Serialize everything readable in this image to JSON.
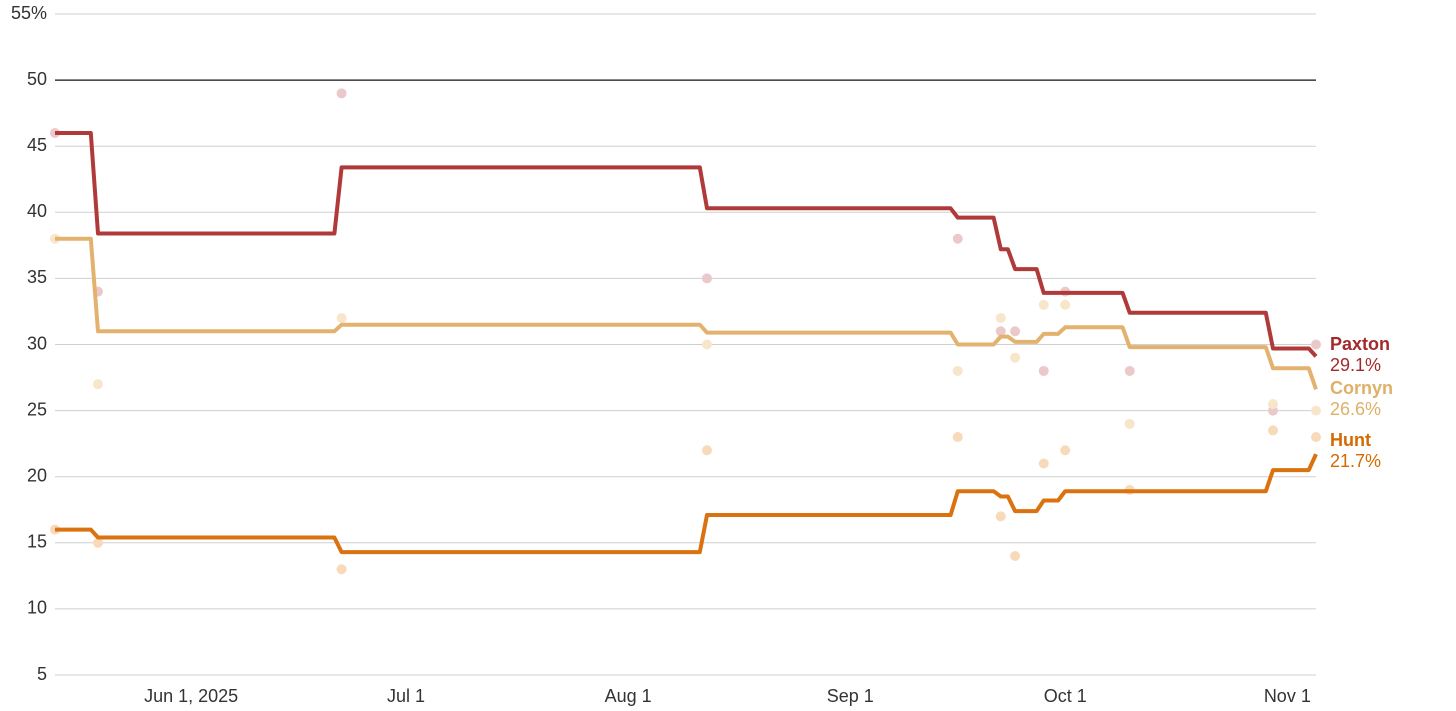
{
  "chart_data": {
    "type": "line",
    "step": true,
    "xlim": [
      "2025-05-13",
      "2025-11-05"
    ],
    "xticks": [
      {
        "value": "2025-06-01",
        "label": "Jun 1, 2025"
      },
      {
        "value": "2025-07-01",
        "label": "Jul 1"
      },
      {
        "value": "2025-08-01",
        "label": "Aug 1"
      },
      {
        "value": "2025-09-01",
        "label": "Sep 1"
      },
      {
        "value": "2025-10-01",
        "label": "Oct 1"
      },
      {
        "value": "2025-11-01",
        "label": "Nov 1"
      }
    ],
    "ylim": [
      5,
      55
    ],
    "yticks": [
      5,
      10,
      15,
      20,
      25,
      30,
      35,
      40,
      45,
      50,
      {
        "value": 55,
        "label": "55%"
      }
    ],
    "grid": true,
    "majority_line": 50,
    "series": [
      {
        "name": "Paxton",
        "color": "#b03a3a",
        "label_color": "#a32a2a",
        "poll_color": "#ebc9cb",
        "x": [
          "2025-05-13",
          "2025-05-18",
          "2025-05-19",
          "2025-06-21",
          "2025-06-22",
          "2025-08-11",
          "2025-08-12",
          "2025-09-15",
          "2025-09-16",
          "2025-09-21",
          "2025-09-22",
          "2025-09-23",
          "2025-09-24",
          "2025-09-27",
          "2025-09-28",
          "2025-10-09",
          "2025-10-10",
          "2025-10-29",
          "2025-10-30",
          "2025-11-04",
          "2025-11-05"
        ],
        "values": [
          46.0,
          46.0,
          38.4,
          38.4,
          43.4,
          43.4,
          40.3,
          40.3,
          39.6,
          39.6,
          37.2,
          37.2,
          35.7,
          35.7,
          33.9,
          33.9,
          32.4,
          32.4,
          29.7,
          29.7,
          29.1
        ],
        "value_labels": [
          null,
          null,
          null,
          null,
          null,
          null,
          null,
          null,
          null,
          null,
          null,
          null,
          null,
          null,
          null,
          null,
          null,
          null,
          null,
          null,
          "29.1%"
        ],
        "polls": {
          "x": [
            "2025-05-13",
            "2025-05-19",
            "2025-06-22",
            "2025-08-12",
            "2025-09-16",
            "2025-09-22",
            "2025-09-24",
            "2025-09-28",
            "2025-10-01",
            "2025-10-10",
            "2025-10-30",
            "2025-11-05"
          ],
          "values": [
            46,
            34,
            49,
            35,
            38,
            31,
            31,
            28,
            34,
            28,
            25,
            30
          ]
        }
      },
      {
        "name": "Cornyn",
        "color": "#e3b26f",
        "label_color": "#deb068",
        "poll_color": "#f8e6cb",
        "x": [
          "2025-05-13",
          "2025-05-18",
          "2025-05-19",
          "2025-06-21",
          "2025-06-22",
          "2025-08-11",
          "2025-08-12",
          "2025-09-15",
          "2025-09-16",
          "2025-09-21",
          "2025-09-22",
          "2025-09-23",
          "2025-09-24",
          "2025-09-27",
          "2025-09-28",
          "2025-09-30",
          "2025-10-01",
          "2025-10-09",
          "2025-10-10",
          "2025-10-29",
          "2025-10-30",
          "2025-11-04",
          "2025-11-05"
        ],
        "values": [
          38.0,
          38.0,
          31.0,
          31.0,
          31.5,
          31.5,
          30.9,
          30.9,
          30.0,
          30.0,
          30.6,
          30.6,
          30.2,
          30.2,
          30.8,
          30.8,
          31.3,
          31.3,
          29.8,
          29.8,
          28.2,
          28.2,
          26.6
        ],
        "value_labels": [
          null,
          null,
          null,
          null,
          null,
          null,
          null,
          null,
          null,
          null,
          null,
          null,
          null,
          null,
          null,
          null,
          null,
          null,
          null,
          null,
          null,
          null,
          "26.6%"
        ],
        "polls": {
          "x": [
            "2025-05-13",
            "2025-05-19",
            "2025-06-22",
            "2025-08-12",
            "2025-09-16",
            "2025-09-22",
            "2025-09-24",
            "2025-09-28",
            "2025-10-01",
            "2025-10-10",
            "2025-10-30",
            "2025-11-05"
          ],
          "values": [
            38,
            27,
            32,
            30,
            28,
            32,
            29,
            33,
            33,
            24,
            25.5,
            25
          ]
        }
      },
      {
        "name": "Hunt",
        "color": "#d9720f",
        "label_color": "#d46a00",
        "poll_color": "#f8dabb",
        "x": [
          "2025-05-13",
          "2025-05-18",
          "2025-05-19",
          "2025-06-21",
          "2025-06-22",
          "2025-08-11",
          "2025-08-12",
          "2025-09-15",
          "2025-09-16",
          "2025-09-21",
          "2025-09-22",
          "2025-09-23",
          "2025-09-24",
          "2025-09-27",
          "2025-09-28",
          "2025-09-30",
          "2025-10-01",
          "2025-10-29",
          "2025-10-30",
          "2025-11-04",
          "2025-11-05"
        ],
        "values": [
          16.0,
          16.0,
          15.4,
          15.4,
          14.3,
          14.3,
          17.1,
          17.1,
          18.9,
          18.9,
          18.5,
          18.5,
          17.4,
          17.4,
          18.2,
          18.2,
          18.9,
          18.9,
          20.5,
          20.5,
          21.7
        ],
        "value_labels": [
          null,
          null,
          null,
          null,
          null,
          null,
          null,
          null,
          null,
          null,
          null,
          null,
          null,
          null,
          null,
          null,
          null,
          null,
          null,
          null,
          "21.7%"
        ],
        "polls": {
          "x": [
            "2025-05-13",
            "2025-05-19",
            "2025-06-22",
            "2025-08-12",
            "2025-09-16",
            "2025-09-22",
            "2025-09-24",
            "2025-09-28",
            "2025-10-01",
            "2025-10-10",
            "2025-10-30",
            "2025-11-05"
          ],
          "values": [
            16,
            15,
            13,
            22,
            23,
            17,
            14,
            21,
            22,
            19,
            23.5,
            23
          ]
        }
      }
    ]
  }
}
